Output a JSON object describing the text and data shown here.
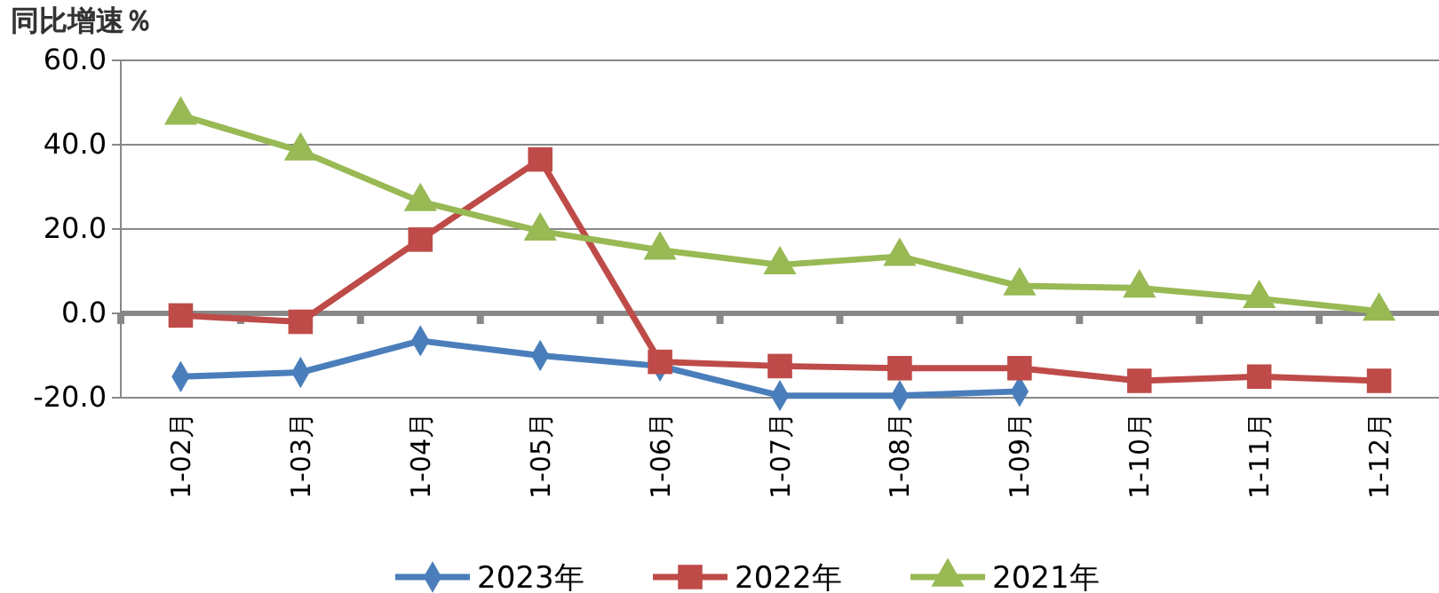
{
  "chart_data": {
    "type": "line",
    "title": "同比增速％",
    "categories": [
      "1-02月",
      "1-03月",
      "1-04月",
      "1-05月",
      "1-06月",
      "1-07月",
      "1-08月",
      "1-09月",
      "1-10月",
      "1-11月",
      "1-12月"
    ],
    "series": [
      {
        "name": "2023年",
        "color": "#4a7ebb",
        "marker": "diamond",
        "values": [
          -15,
          -14,
          -6.5,
          -10,
          -12.5,
          -19.5,
          -19.5,
          -18.5,
          null,
          null,
          null
        ]
      },
      {
        "name": "2022年",
        "color": "#be4b48",
        "marker": "square",
        "values": [
          -0.5,
          -2,
          17.5,
          36.5,
          -11.5,
          -12.5,
          -13,
          -13,
          -16,
          -15,
          -16
        ]
      },
      {
        "name": "2021年",
        "color": "#98b954",
        "marker": "triangle",
        "values": [
          47,
          38.5,
          26.5,
          19.5,
          15,
          11.5,
          13.5,
          6.5,
          6,
          3.5,
          0.5
        ]
      }
    ],
    "ylim": [
      -20,
      60
    ],
    "yticks": [
      {
        "value": -20,
        "label": "-20.0"
      },
      {
        "value": 0,
        "label": "0.0"
      },
      {
        "value": 20,
        "label": "20.0"
      },
      {
        "value": 40,
        "label": "40.0"
      },
      {
        "value": 60,
        "label": "60.0"
      }
    ],
    "grid": "y",
    "legend": "bottom"
  }
}
